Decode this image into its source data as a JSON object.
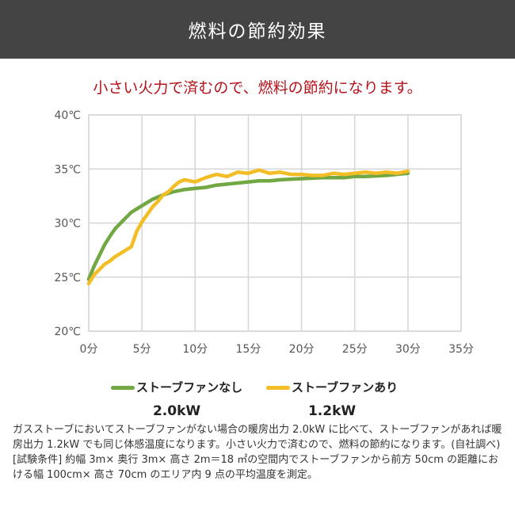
{
  "header": {
    "title": "燃料の節約効果"
  },
  "subtitle": "小さい火力で済むので、燃料の節約になります。",
  "chart_data": {
    "type": "line",
    "title": "",
    "xlabel": "",
    "ylabel": "",
    "xlim": [
      0,
      35
    ],
    "ylim": [
      20,
      40
    ],
    "x_ticks": [
      "0分",
      "5分",
      "10分",
      "15分",
      "20分",
      "25分",
      "30分",
      "35分"
    ],
    "y_ticks": [
      "20℃",
      "25℃",
      "30℃",
      "35℃",
      "40℃"
    ],
    "grid": true,
    "series": [
      {
        "name": "ストーブファンなし",
        "power": "2.0kW",
        "color": "#72a843",
        "x": [
          0,
          0.5,
          1,
          1.5,
          2,
          2.5,
          3,
          3.5,
          4,
          5,
          6,
          7,
          8,
          9,
          10,
          11,
          12,
          13,
          14,
          15,
          16,
          17,
          18,
          20,
          22,
          24,
          25,
          26,
          28,
          30
        ],
        "y": [
          24.8,
          26,
          27,
          28,
          28.8,
          29.5,
          30,
          30.5,
          31,
          31.6,
          32.2,
          32.6,
          32.9,
          33.1,
          33.2,
          33.3,
          33.5,
          33.6,
          33.7,
          33.8,
          33.9,
          33.9,
          34,
          34.1,
          34.2,
          34.2,
          34.3,
          34.3,
          34.4,
          34.6
        ]
      },
      {
        "name": "ストーブファンあり",
        "power": "1.2kW",
        "color": "#f2bd25",
        "x": [
          0,
          0.5,
          1,
          1.5,
          2,
          2.5,
          3,
          3.5,
          4,
          4.5,
          5,
          5.5,
          6,
          6.5,
          7,
          7.5,
          8,
          8.5,
          9,
          10,
          11,
          12,
          13,
          14,
          15,
          16,
          17,
          18,
          19,
          20,
          21,
          22,
          23,
          24,
          25,
          26,
          27,
          28,
          29,
          30
        ],
        "y": [
          24.4,
          25.2,
          25.7,
          26.2,
          26.5,
          26.9,
          27.2,
          27.5,
          27.8,
          29.2,
          30.1,
          30.8,
          31.5,
          32,
          32.6,
          32.9,
          33.4,
          33.8,
          34,
          33.8,
          34.2,
          34.5,
          34.3,
          34.7,
          34.6,
          34.9,
          34.6,
          34.7,
          34.5,
          34.5,
          34.4,
          34.4,
          34.6,
          34.5,
          34.6,
          34.7,
          34.6,
          34.7,
          34.6,
          34.8
        ]
      }
    ]
  },
  "legend": {
    "items": [
      {
        "label": "ストーブファンなし",
        "power": "2.0kW"
      },
      {
        "label": "ストーブファンあり",
        "power": "1.2kW"
      }
    ]
  },
  "description": {
    "p1": "ガスストーブにおいてストーブファンがない場合の暖房出力 2.0kW に比べて、ストーブファンがあれば暖房出力 1.2kW でも同じ体感温度になります。小さい火力で済むので、燃料の節約になります。(自社調べ)",
    "p2": "[試験条件] 約幅 3m× 奥行 3m× 高さ 2m＝18 ㎡の空間内でストーブファンから前方 50cm の距離における幅 100cm× 高さ 70cm のエリア内 9 点の平均温度を測定。"
  }
}
